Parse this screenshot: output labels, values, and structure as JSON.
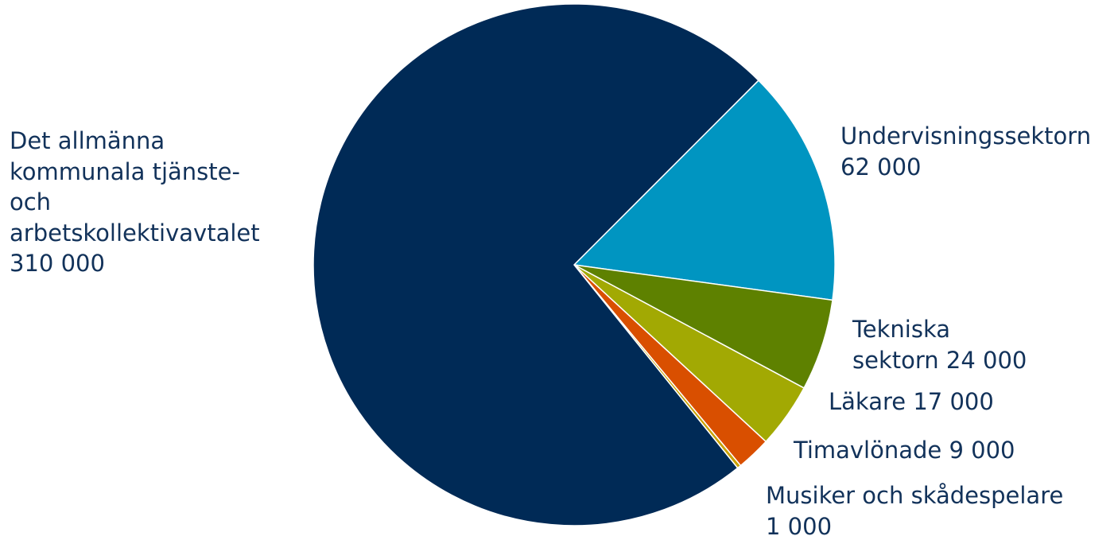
{
  "chart_data": {
    "type": "pie",
    "title": "",
    "slices": [
      {
        "name": "Det allmänna kommunala tjänste- och arbetskollektivavtalet",
        "value": 310000,
        "label_lines": [
          "Det allmänna",
          "kommunala tjänste-",
          "och",
          "arbetskollektivavtalet",
          "310 000"
        ],
        "color": "#002a56"
      },
      {
        "name": "Undervisningssektorn",
        "value": 62000,
        "label_lines": [
          "Undervisningssektorn",
          "62 000"
        ],
        "color": "#0095c1"
      },
      {
        "name": "Tekniska sektorn",
        "value": 24000,
        "label_lines": [
          "Tekniska",
          "sektorn 24 000"
        ],
        "color": "#5e8100"
      },
      {
        "name": "Läkare",
        "value": 17000,
        "label_lines": [
          "Läkare 17 000"
        ],
        "color": "#a2a903"
      },
      {
        "name": "Timavlönade",
        "value": 9000,
        "label_lines": [
          "Timavlönade 9 000"
        ],
        "color": "#d94f00"
      },
      {
        "name": "Musiker och skådespelare",
        "value": 1000,
        "label_lines": [
          "Musiker och skådespelare",
          "1 000"
        ],
        "color": "#c9a100"
      }
    ]
  }
}
